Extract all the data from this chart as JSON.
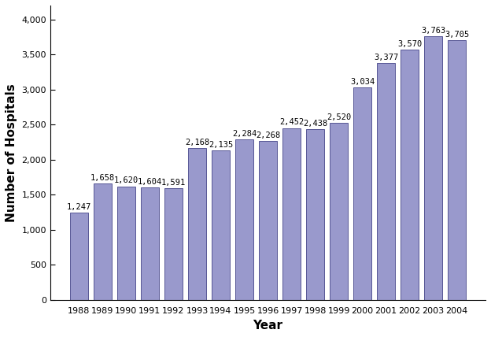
{
  "years": [
    1988,
    1989,
    1990,
    1991,
    1992,
    1993,
    1994,
    1995,
    1996,
    1997,
    1998,
    1999,
    2000,
    2001,
    2002,
    2003,
    2004
  ],
  "values": [
    1247,
    1658,
    1620,
    1604,
    1591,
    2168,
    2135,
    2284,
    2268,
    2452,
    2438,
    2520,
    3034,
    3377,
    3570,
    3763,
    3705
  ],
  "bar_color": "#9999CC",
  "bar_edge_color": "#444488",
  "xlabel": "Year",
  "ylabel": "Number of Hospitals",
  "ylim": [
    0,
    4000
  ],
  "yticks": [
    0,
    500,
    1000,
    1500,
    2000,
    2500,
    3000,
    3500,
    4000
  ],
  "title": "",
  "label_fontsize": 7.5,
  "axis_label_fontsize": 11,
  "tick_fontsize": 8,
  "background_color": "#ffffff"
}
